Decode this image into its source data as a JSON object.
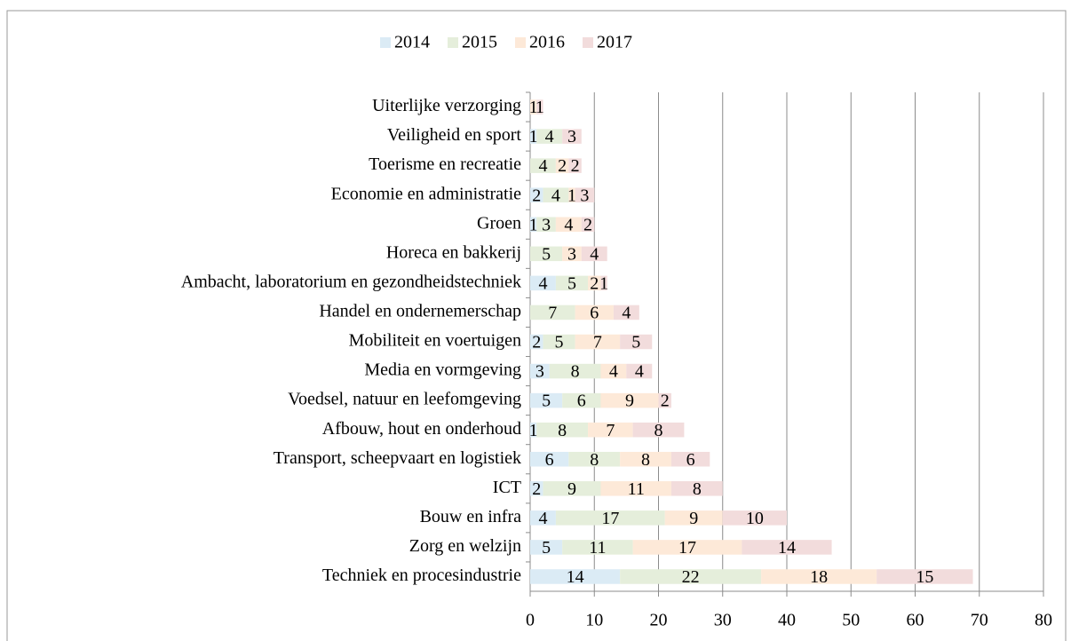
{
  "chart_data": {
    "type": "stacked-barh",
    "categories": [
      "Uiterlijke verzorging",
      "Veiligheid en sport",
      "Toerisme en recreatie",
      "Economie en administratie",
      "Groen",
      "Horeca en bakkerij",
      "Ambacht, laboratorium en gezondheidstechniek",
      "Handel en ondernemerschap",
      "Mobiliteit en voertuigen",
      "Media en vormgeving",
      "Voedsel, natuur en leefomgeving",
      "Afbouw, hout en onderhoud",
      "Transport, scheepvaart en logistiek",
      "ICT",
      "Bouw en infra",
      "Zorg en welzijn",
      "Techniek en procesindustrie"
    ],
    "series": [
      {
        "name": "2014",
        "color": "#dbebf5",
        "values": [
          null,
          1,
          null,
          2,
          1,
          null,
          4,
          null,
          2,
          3,
          5,
          1,
          6,
          2,
          4,
          5,
          14
        ]
      },
      {
        "name": "2015",
        "color": "#e5eedb",
        "values": [
          null,
          4,
          4,
          4,
          3,
          5,
          5,
          7,
          5,
          8,
          6,
          8,
          8,
          9,
          17,
          11,
          22
        ]
      },
      {
        "name": "2016",
        "color": "#fde9d8",
        "values": [
          1,
          null,
          2,
          1,
          4,
          3,
          2,
          6,
          7,
          4,
          9,
          7,
          8,
          11,
          9,
          17,
          18
        ]
      },
      {
        "name": "2017",
        "color": "#f2dcdc",
        "values": [
          1,
          3,
          2,
          3,
          2,
          4,
          1,
          4,
          5,
          4,
          2,
          8,
          6,
          8,
          10,
          14,
          15
        ]
      }
    ],
    "xlim": [
      0,
      80
    ],
    "xticks": [
      0,
      10,
      20,
      30,
      40,
      50,
      60,
      70,
      80
    ],
    "grid": true,
    "legend": "top"
  }
}
